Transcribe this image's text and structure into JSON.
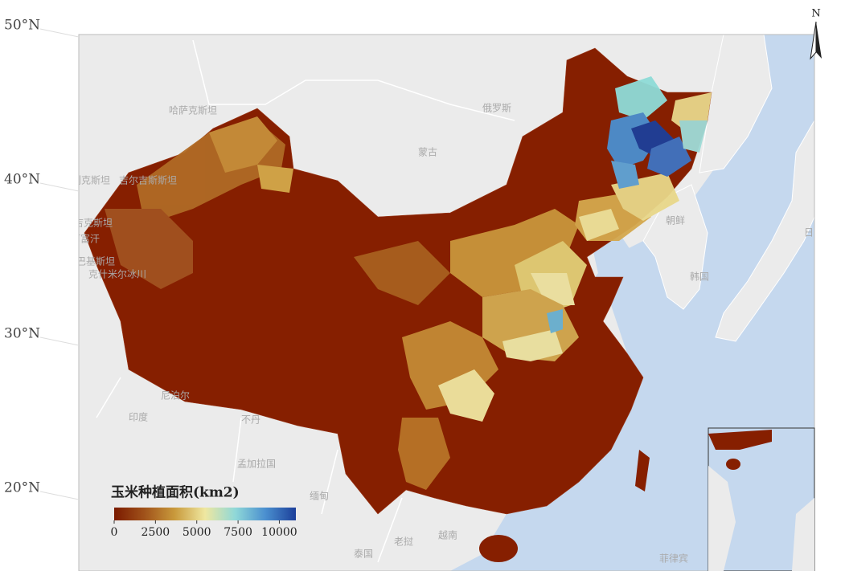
{
  "map": {
    "north_label": "N",
    "lat_labels": [
      {
        "value": 50,
        "label": "50°N"
      },
      {
        "value": 40,
        "label": "40°N"
      },
      {
        "value": 30,
        "label": "30°N"
      },
      {
        "value": 20,
        "label": "20°N"
      }
    ],
    "place_labels": [
      "哈萨克斯坦",
      "俄罗斯",
      "蒙古",
      "乌兹别克斯坦",
      "吉尔吉斯斯坦",
      "塔吉克斯坦",
      "阿富汗",
      "巴基斯坦",
      "克什米尔冰川",
      "尼泊尔",
      "印度",
      "不丹",
      "孟加拉国",
      "缅甸",
      "老挝",
      "越南",
      "泰国",
      "朝鲜",
      "韩国",
      "日本",
      "菲律宾"
    ],
    "legend": {
      "title": "玉米种植面积(km2)",
      "lim": [
        0,
        11000
      ],
      "ticks": [
        0,
        2500,
        5000,
        7500,
        10000
      ],
      "colors": [
        "#7a1a00",
        "#a0521a",
        "#c99a3c",
        "#efe7a0",
        "#8fd8d8",
        "#4a8fcf",
        "#1c3f9a"
      ]
    }
  }
}
